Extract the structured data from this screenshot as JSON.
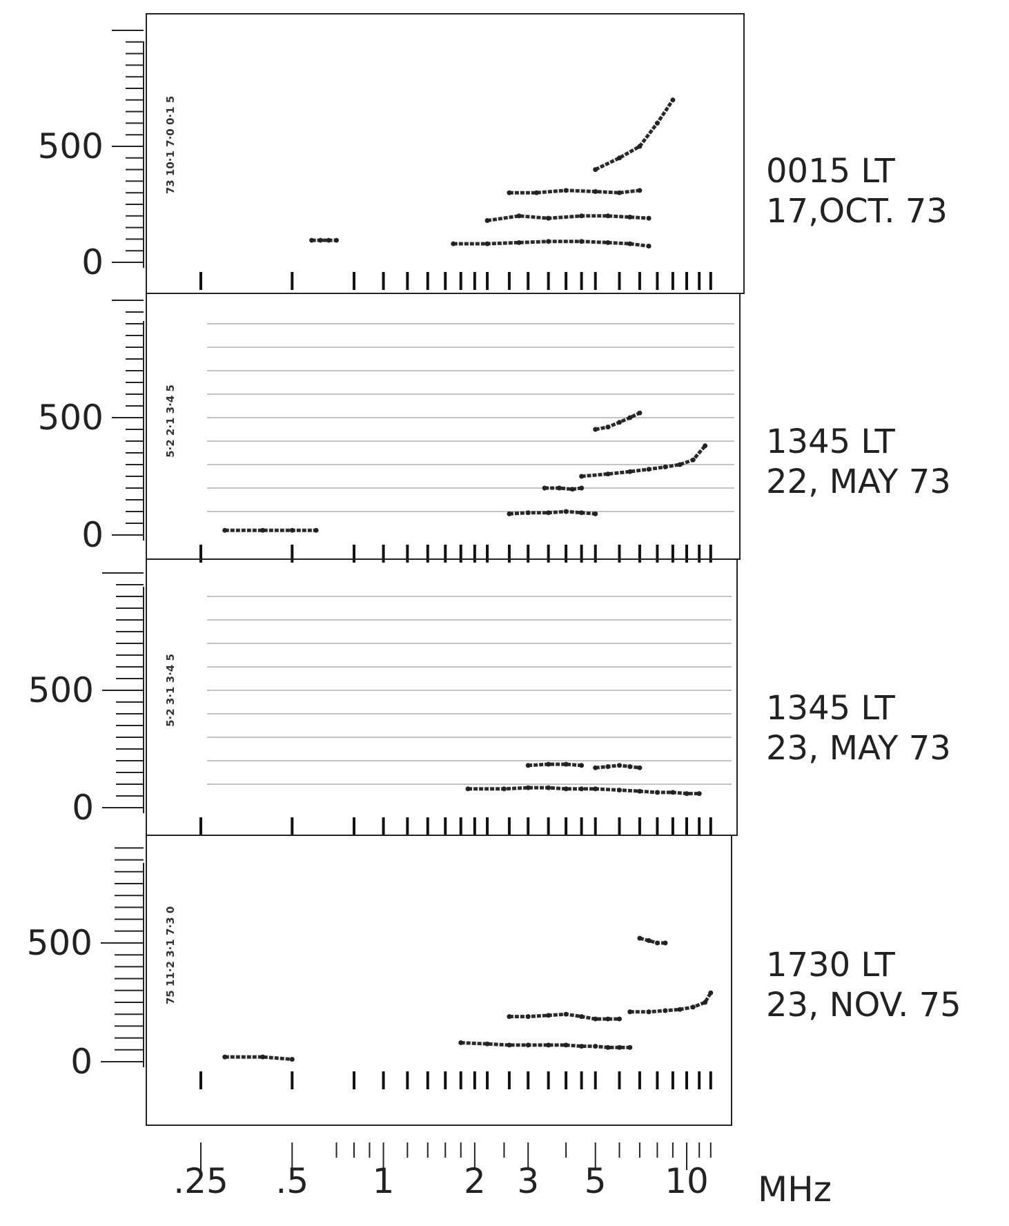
{
  "chart_data": {
    "type": "scatter",
    "description_units": {
      "x": "MHz",
      "y": ""
    },
    "x_axis": {
      "scale": "log",
      "unit": "MHz",
      "range": [
        0.25,
        12
      ],
      "tick_labels": [
        ".25",
        ".5",
        "1",
        "2",
        "3",
        "5",
        "10"
      ],
      "tick_values": [
        0.25,
        0.5,
        1,
        2,
        3,
        5,
        10
      ],
      "minor_ticks": [
        0.7,
        0.8,
        0.9,
        1.2,
        1.4,
        1.6,
        1.8,
        2.5,
        4,
        6,
        7,
        8,
        9,
        11,
        12
      ]
    },
    "panels": [
      {
        "caption_line1": "0015  LT",
        "caption_line2": "17,OCT.  73",
        "channel_code": "73 10·1 7·0 0·1 5",
        "y_tick_labels": [
          "500",
          "0"
        ],
        "y_tick_values": [
          500,
          0
        ],
        "ylim": [
          0,
          1000
        ],
        "grid": false,
        "traces": [
          {
            "name": "",
            "x": [
              0.58,
              0.62,
              0.66,
              0.7
            ],
            "y": [
              95,
              95,
              95,
              95
            ]
          },
          {
            "name": "",
            "x": [
              1.7,
              2.2,
              2.8,
              3.5,
              4.5,
              5.5,
              6.5,
              7.5
            ],
            "y": [
              80,
              80,
              85,
              90,
              90,
              85,
              80,
              70
            ]
          },
          {
            "name": "",
            "x": [
              2.2,
              2.8,
              3.5,
              4.5,
              5.5,
              6.5,
              7.5
            ],
            "y": [
              180,
              200,
              190,
              200,
              200,
              195,
              190
            ]
          },
          {
            "name": "",
            "x": [
              2.6,
              3.2,
              4,
              5,
              6,
              7
            ],
            "y": [
              300,
              300,
              310,
              305,
              300,
              310
            ]
          },
          {
            "name": "",
            "x": [
              5,
              6,
              7,
              8,
              9
            ],
            "y": [
              400,
              450,
              500,
              600,
              700
            ]
          }
        ]
      },
      {
        "caption_line1": "1345  LT",
        "caption_line2": "22, MAY  73",
        "channel_code": "5·2 2·1 3·4 5",
        "y_tick_labels": [
          "500",
          "0"
        ],
        "y_tick_values": [
          500,
          0
        ],
        "ylim": [
          0,
          1000
        ],
        "grid": true,
        "traces": [
          {
            "name": "",
            "x": [
              0.3,
              0.4,
              0.5,
              0.6
            ],
            "y": [
              20,
              20,
              20,
              20
            ]
          },
          {
            "name": "",
            "x": [
              2.6,
              3,
              3.5,
              4,
              4.5,
              5
            ],
            "y": [
              90,
              95,
              95,
              100,
              95,
              90
            ]
          },
          {
            "name": "",
            "x": [
              3.4,
              3.8,
              4.2,
              4.5
            ],
            "y": [
              200,
              200,
              195,
              200
            ]
          },
          {
            "name": "",
            "x": [
              4.5,
              5.5,
              6.5,
              7.5,
              8.5,
              9.5,
              10.5,
              11.5
            ],
            "y": [
              250,
              260,
              270,
              280,
              290,
              300,
              320,
              380
            ]
          },
          {
            "name": "",
            "x": [
              5,
              5.5,
              6,
              6.5,
              7
            ],
            "y": [
              450,
              460,
              480,
              500,
              520
            ]
          }
        ]
      },
      {
        "caption_line1": "1345  LT",
        "caption_line2": "23, MAY  73",
        "channel_code": "5·2 3·1 3·4 5",
        "y_tick_labels": [
          "500",
          "0"
        ],
        "y_tick_values": [
          500,
          0
        ],
        "ylim": [
          0,
          1000
        ],
        "grid": true,
        "traces": [
          {
            "name": "",
            "x": [
              1.9,
              2.5,
              3,
              3.5,
              4,
              4.5,
              5,
              6,
              7,
              8,
              9,
              10,
              11
            ],
            "y": [
              80,
              80,
              85,
              85,
              80,
              80,
              80,
              75,
              70,
              65,
              65,
              60,
              60
            ]
          },
          {
            "name": "",
            "x": [
              3,
              3.5,
              4,
              4.5
            ],
            "y": [
              180,
              185,
              185,
              180
            ]
          },
          {
            "name": "",
            "x": [
              5,
              5.5,
              6,
              6.5,
              7
            ],
            "y": [
              170,
              175,
              180,
              175,
              170
            ]
          }
        ]
      },
      {
        "caption_line1": "1730   LT",
        "caption_line2": "23, NOV. 75",
        "channel_code": "75 11·2 3·1 7·3 0",
        "y_tick_labels": [
          "500",
          "0"
        ],
        "y_tick_values": [
          500,
          0
        ],
        "ylim": [
          0,
          1000
        ],
        "grid": false,
        "traces": [
          {
            "name": "",
            "x": [
              0.3,
              0.4,
              0.5
            ],
            "y": [
              20,
              20,
              10
            ]
          },
          {
            "name": "",
            "x": [
              1.8,
              2.2,
              2.6,
              3,
              3.5,
              4,
              4.5,
              5,
              5.5,
              6,
              6.5
            ],
            "y": [
              80,
              75,
              70,
              70,
              70,
              70,
              65,
              65,
              60,
              60,
              60
            ]
          },
          {
            "name": "",
            "x": [
              2.6,
              3,
              3.5,
              4,
              4.5,
              5,
              5.5,
              6
            ],
            "y": [
              190,
              190,
              195,
              200,
              190,
              180,
              180,
              180
            ]
          },
          {
            "name": "",
            "x": [
              6.5,
              7.5,
              8.5,
              9.5,
              10.5,
              11.5,
              12
            ],
            "y": [
              210,
              210,
              215,
              220,
              230,
              250,
              290
            ]
          },
          {
            "name": "",
            "x": [
              7,
              7.5,
              8,
              8.5
            ],
            "y": [
              520,
              510,
              500,
              500
            ]
          }
        ]
      }
    ]
  }
}
